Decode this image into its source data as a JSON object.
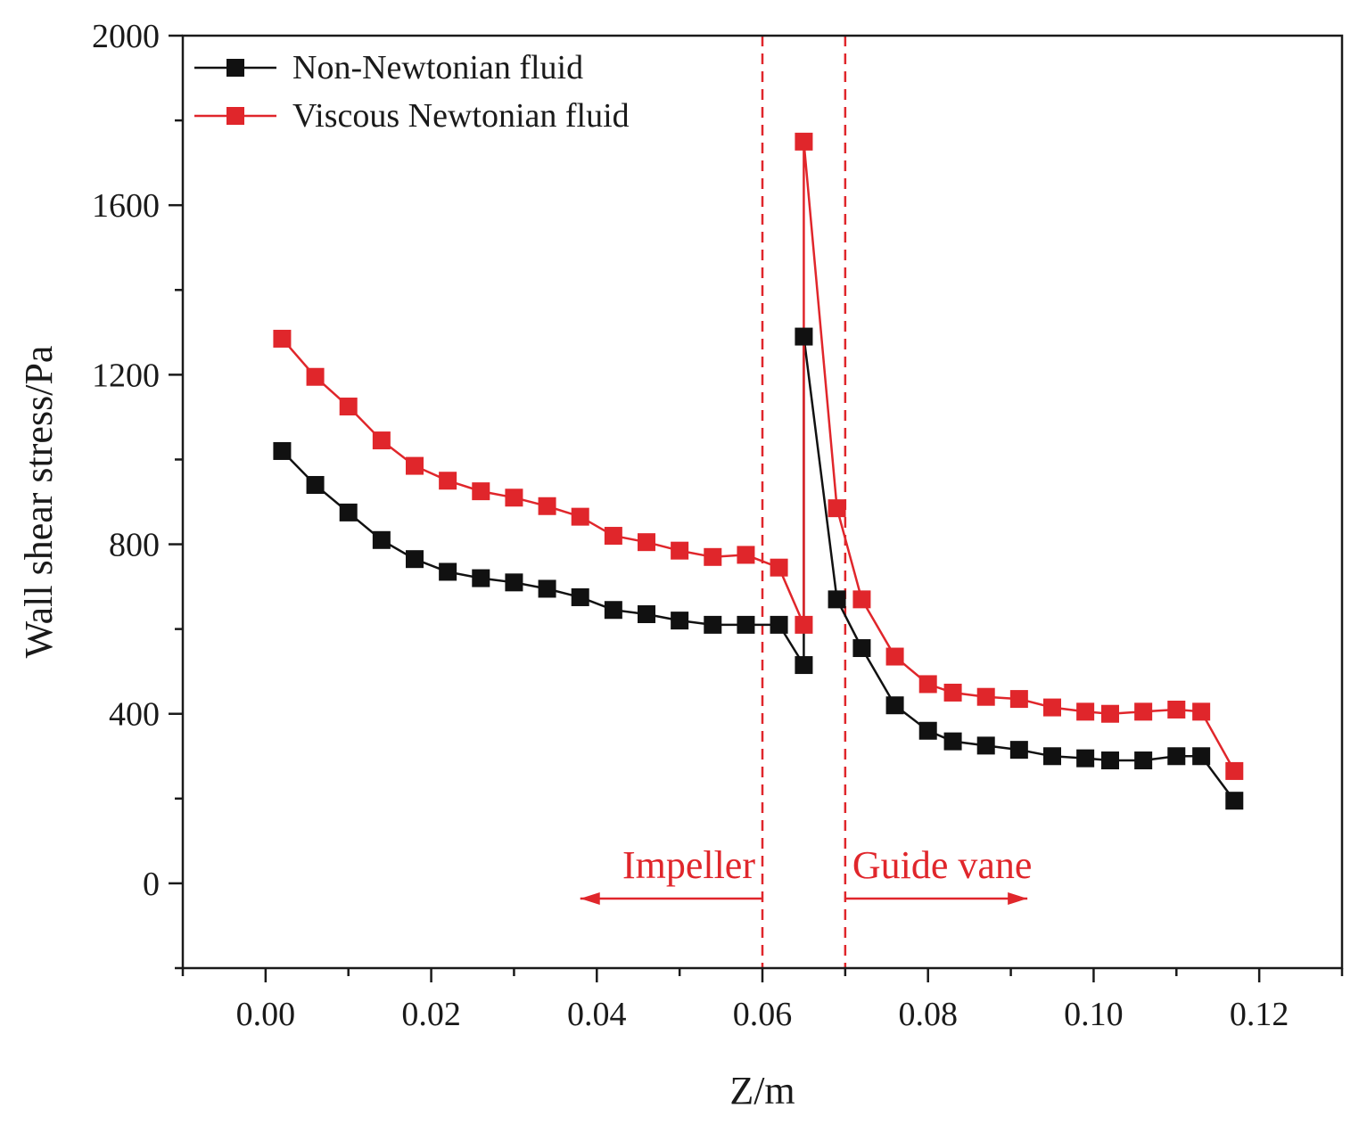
{
  "chart_data": {
    "type": "line",
    "title": "",
    "xlabel": "Z/m",
    "ylabel": "Wall shear stress/Pa",
    "xlim": [
      -0.01,
      0.13
    ],
    "ylim": [
      -200,
      2000
    ],
    "x_ticks": [
      0.0,
      0.02,
      0.04,
      0.06,
      0.08,
      0.1,
      0.12
    ],
    "x_tick_labels": [
      "0.00",
      "0.02",
      "0.04",
      "0.06",
      "0.08",
      "0.10",
      "0.12"
    ],
    "y_ticks": [
      0,
      400,
      800,
      1200,
      1600,
      2000
    ],
    "y_tick_labels": [
      "0",
      "400",
      "800",
      "1200",
      "1600",
      "2000"
    ],
    "grid": false,
    "legend_position": "top-left",
    "series": [
      {
        "name": "Non-Newtonian fluid",
        "color": "#111111",
        "x": [
          0.002,
          0.006,
          0.01,
          0.014,
          0.018,
          0.022,
          0.026,
          0.03,
          0.034,
          0.038,
          0.042,
          0.046,
          0.05,
          0.054,
          0.058,
          0.062,
          0.065,
          0.065,
          0.069,
          0.072,
          0.076,
          0.08,
          0.083,
          0.087,
          0.091,
          0.095,
          0.099,
          0.102,
          0.106,
          0.11,
          0.113,
          0.117
        ],
        "y": [
          1020,
          940,
          875,
          810,
          765,
          735,
          720,
          710,
          695,
          675,
          645,
          635,
          620,
          610,
          610,
          610,
          515,
          1290,
          670,
          555,
          420,
          360,
          335,
          325,
          315,
          300,
          295,
          290,
          290,
          300,
          300,
          195
        ]
      },
      {
        "name": "Viscous Newtonian fluid",
        "color": "#e0262b",
        "x": [
          0.002,
          0.006,
          0.01,
          0.014,
          0.018,
          0.022,
          0.026,
          0.03,
          0.034,
          0.038,
          0.042,
          0.046,
          0.05,
          0.054,
          0.058,
          0.062,
          0.065,
          0.065,
          0.069,
          0.072,
          0.076,
          0.08,
          0.083,
          0.087,
          0.091,
          0.095,
          0.099,
          0.102,
          0.106,
          0.11,
          0.113,
          0.117
        ],
        "y": [
          1285,
          1195,
          1125,
          1045,
          985,
          950,
          925,
          910,
          890,
          865,
          820,
          805,
          785,
          770,
          775,
          745,
          610,
          1750,
          885,
          670,
          535,
          470,
          450,
          440,
          435,
          415,
          405,
          400,
          405,
          410,
          405,
          265
        ]
      }
    ],
    "reference_lines": [
      {
        "axis": "x",
        "value": 0.06,
        "style": "dashed",
        "color": "#e0262b"
      },
      {
        "axis": "x",
        "value": 0.07,
        "style": "dashed",
        "color": "#e0262b"
      }
    ],
    "annotations": [
      {
        "text": "Impeller",
        "color": "#e0262b",
        "arrow": "left",
        "arrow_from": 0.06,
        "arrow_to": 0.038
      },
      {
        "text": "Guide vane",
        "color": "#e0262b",
        "arrow": "right",
        "arrow_from": 0.07,
        "arrow_to": 0.092
      }
    ]
  }
}
